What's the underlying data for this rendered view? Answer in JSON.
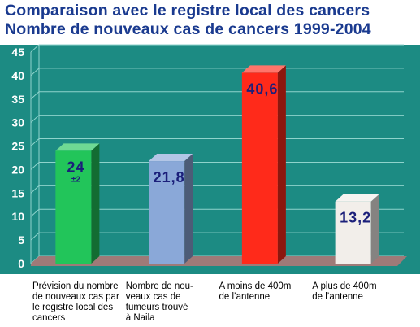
{
  "title": "Comparaison avec le registre local des cancers",
  "subtitle": "Nombre de nouveaux cas de cancers 1999-2004",
  "chart_data": {
    "type": "bar",
    "categories": [
      "Prévision du nombre\nde nouveaux cas par\nle registre local des\ncancers",
      "Nombre de nou-\nveaux cas de\ntumeurs  trouvé\nà Naila",
      "A moins de 400m\nde l’antenne",
      "A plus de 400m\nde l’antenne"
    ],
    "values": [
      24,
      21.8,
      40.6,
      13.2
    ],
    "value_labels": [
      "24",
      "21,8",
      "40,6",
      "13,2"
    ],
    "error_labels": [
      "±2",
      "",
      "",
      ""
    ],
    "ylim": [
      0,
      45
    ],
    "yticks": [
      0,
      5,
      10,
      15,
      20,
      25,
      30,
      35,
      40,
      45
    ],
    "grid": true,
    "colors": {
      "background": "#1c8b83",
      "grid": "#8fd3cc",
      "floor": "#9e7a78",
      "axis_text": "#ffffff",
      "value_text": "#1b1f7a",
      "bars": [
        "#22c55a",
        "#8aa8d8",
        "#ff2a1a",
        "#f2eeea"
      ]
    }
  }
}
